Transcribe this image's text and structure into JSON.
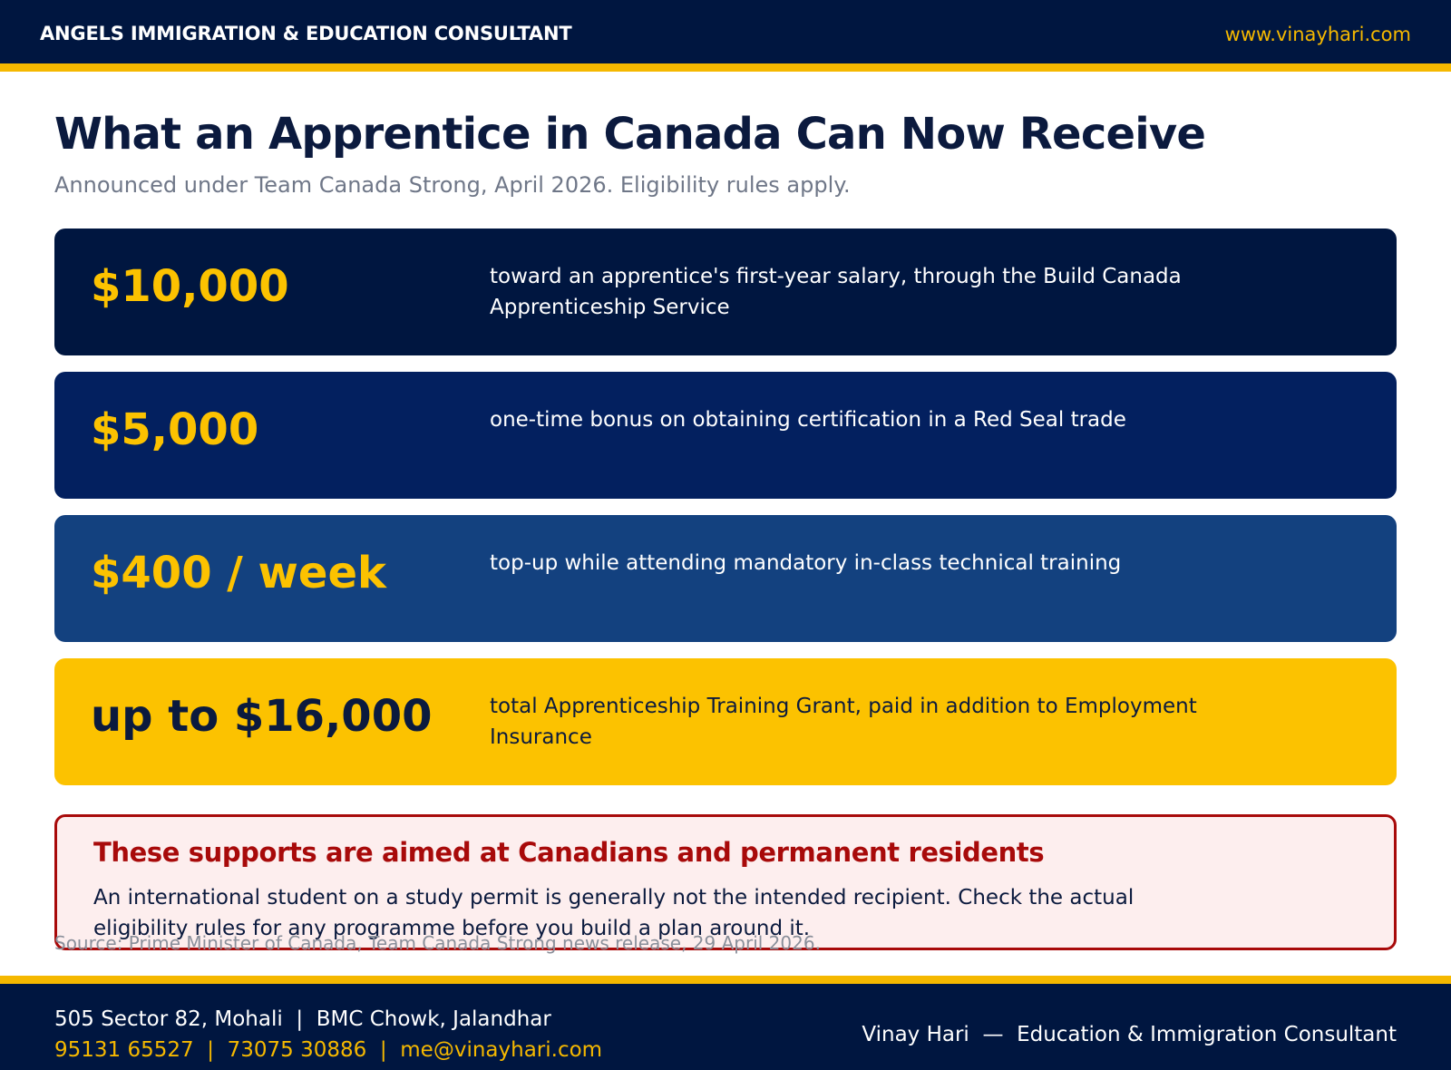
{
  "header": {
    "brand": "ANGELS IMMIGRATION & EDUCATION CONSULTANT",
    "website": "www.vinayhari.com"
  },
  "title": "What an Apprentice in Canada Can Now Receive",
  "subtitle": "Announced under Team Canada Strong, April 2026. Eligibility rules apply.",
  "cards": [
    {
      "amount": "$10,000",
      "description": "toward an apprentice's first-year salary, through the Build Canada Apprenticeship Service"
    },
    {
      "amount": "$5,000",
      "description": "one-time bonus on obtaining certification in a Red Seal trade"
    },
    {
      "amount": "$400 / week",
      "description": "top-up while attending mandatory in-class technical training"
    },
    {
      "amount": "up to $16,000",
      "description": "total Apprenticeship Training Grant, paid in addition to Employment Insurance"
    }
  ],
  "notice": {
    "title": "These supports are aimed at Canadians and permanent residents",
    "body": "An international student on a study permit is generally not the intended recipient. Check the actual eligibility rules for any programme before you build a plan around it."
  },
  "source": "Source: Prime Minister of Canada, Team Canada Strong news release, 29 April 2026.",
  "footer": {
    "address": "505 Sector 82, Mohali  |  BMC Chowk, Jalandhar",
    "contacts": "95131 65527  |  73075 30886  |  me@vinayhari.com",
    "signature": "Vinay Hari  —  Education & Immigration Consultant"
  },
  "colors": {
    "navy": "#001640",
    "blue_mid": "#03205f",
    "blue_light": "#13417f",
    "gold": "#fcc200",
    "alert_red": "#a80a0a",
    "alert_bg": "#fdeeee"
  }
}
